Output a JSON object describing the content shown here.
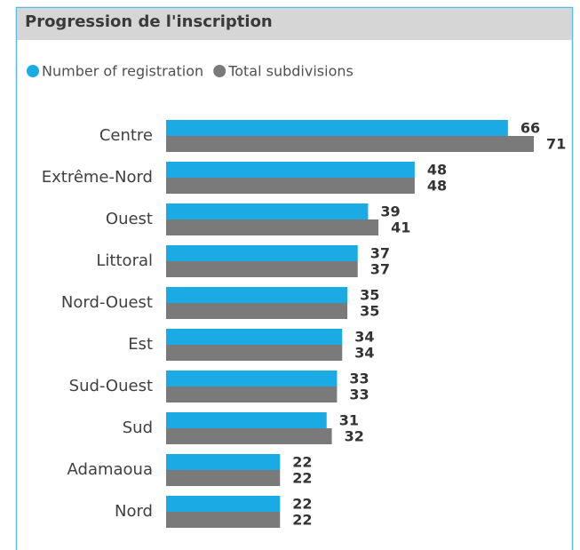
{
  "chart_data": {
    "type": "bar",
    "orientation": "horizontal",
    "title": "Progression de l'inscription",
    "categories": [
      "Centre",
      "Extrême-Nord",
      "Ouest",
      "Littoral",
      "Nord-Ouest",
      "Est",
      "Sud-Ouest",
      "Sud",
      "Adamaoua",
      "Nord"
    ],
    "series": [
      {
        "name": "Number of registration",
        "color": "#1aabe5",
        "values": [
          66,
          48,
          39,
          37,
          35,
          34,
          33,
          31,
          22,
          22
        ]
      },
      {
        "name": "Total subdivisions",
        "color": "#7a7a7a",
        "values": [
          71,
          48,
          41,
          37,
          35,
          34,
          33,
          32,
          22,
          22
        ]
      }
    ],
    "legend": "top-left"
  }
}
